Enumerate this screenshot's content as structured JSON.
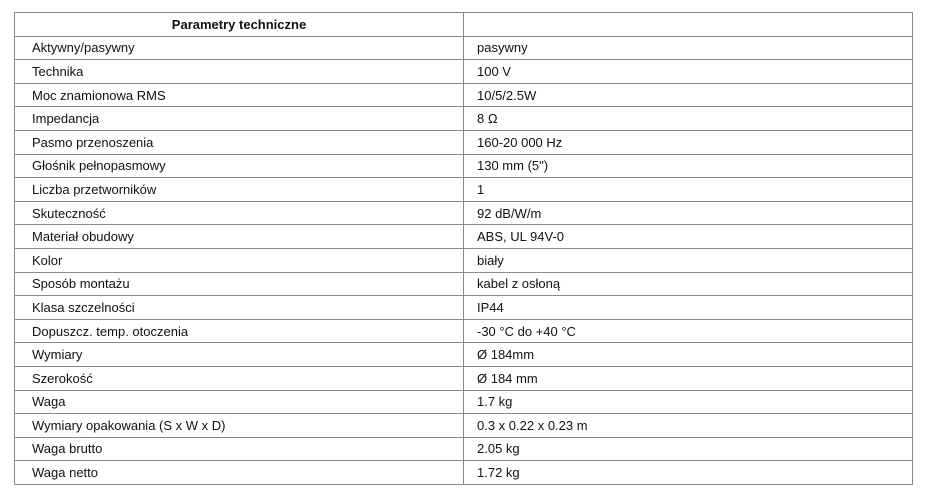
{
  "table": {
    "header": [
      "Parametry techniczne",
      ""
    ],
    "rows": [
      [
        "Aktywny/pasywny",
        "pasywny"
      ],
      [
        "Technika",
        "100 V"
      ],
      [
        "Moc znamionowa RMS",
        "10/5/2.5W"
      ],
      [
        "Impedancja",
        "8 Ω"
      ],
      [
        "Pasmo przenoszenia",
        "160-20 000 Hz"
      ],
      [
        "Głośnik pełnopasmowy",
        "130 mm (5\")"
      ],
      [
        "Liczba przetworników",
        "1"
      ],
      [
        "Skuteczność",
        "92 dB/W/m"
      ],
      [
        "Materiał obudowy",
        "ABS, UL 94V-0"
      ],
      [
        "Kolor",
        "biały"
      ],
      [
        "Sposób montażu",
        "kabel z osłoną"
      ],
      [
        "Klasa szczelności",
        "IP44"
      ],
      [
        "Dopuszcz. temp. otoczenia",
        "-30 °C do +40 °C"
      ],
      [
        "Wymiary",
        "Ø 184mm"
      ],
      [
        "Szerokość",
        "Ø 184 mm"
      ],
      [
        "Waga",
        "1.7 kg"
      ],
      [
        "Wymiary opakowania (S x W x D)",
        "0.3 x 0.22 x 0.23 m"
      ],
      [
        "Waga brutto",
        "2.05 kg"
      ],
      [
        "Waga netto",
        "1.72 kg"
      ]
    ]
  }
}
